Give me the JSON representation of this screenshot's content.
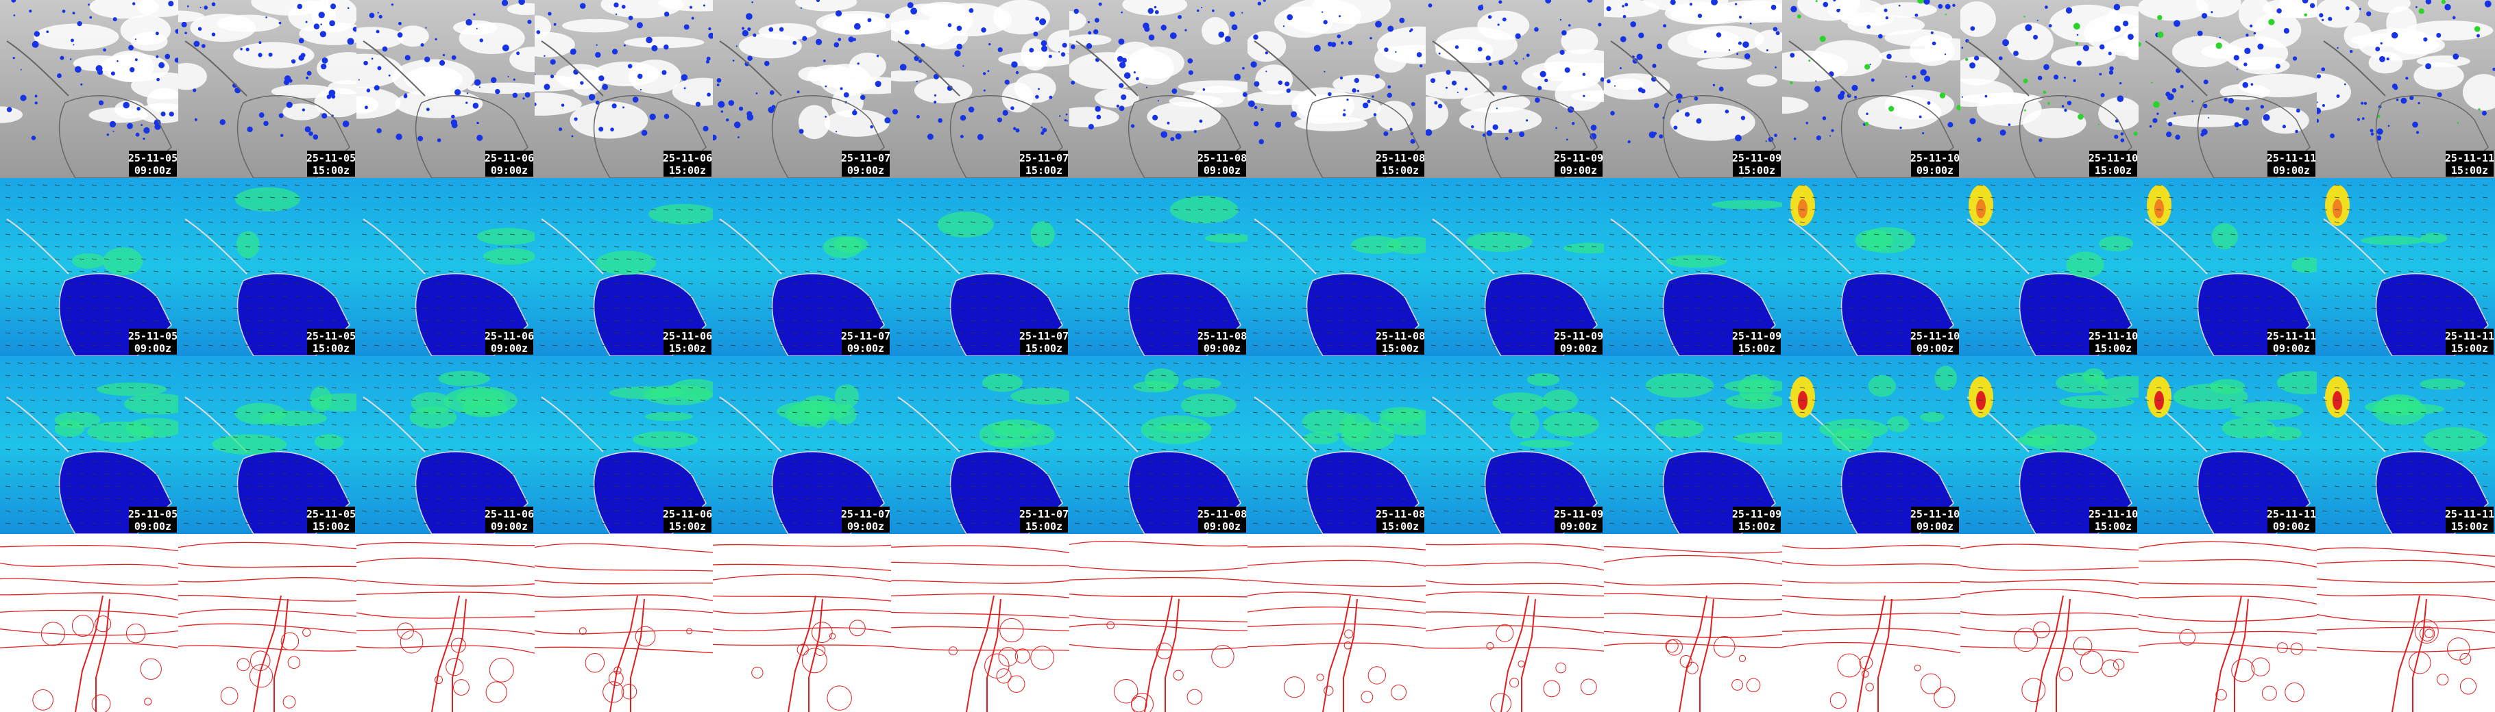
{
  "timestamps": [
    {
      "date": "25-11-05",
      "time": "09:00z"
    },
    {
      "date": "25-11-05",
      "time": "15:00z"
    },
    {
      "date": "25-11-06",
      "time": "09:00z"
    },
    {
      "date": "25-11-06",
      "time": "15:00z"
    },
    {
      "date": "25-11-07",
      "time": "09:00z"
    },
    {
      "date": "25-11-07",
      "time": "15:00z"
    },
    {
      "date": "25-11-08",
      "time": "09:00z"
    },
    {
      "date": "25-11-08",
      "time": "15:00z"
    },
    {
      "date": "25-11-09",
      "time": "09:00z"
    },
    {
      "date": "25-11-09",
      "time": "15:00z"
    },
    {
      "date": "25-11-10",
      "time": "09:00z"
    },
    {
      "date": "25-11-10",
      "time": "15:00z"
    },
    {
      "date": "25-11-11",
      "time": "09:00z"
    },
    {
      "date": "25-11-11",
      "time": "15:00z"
    }
  ]
}
